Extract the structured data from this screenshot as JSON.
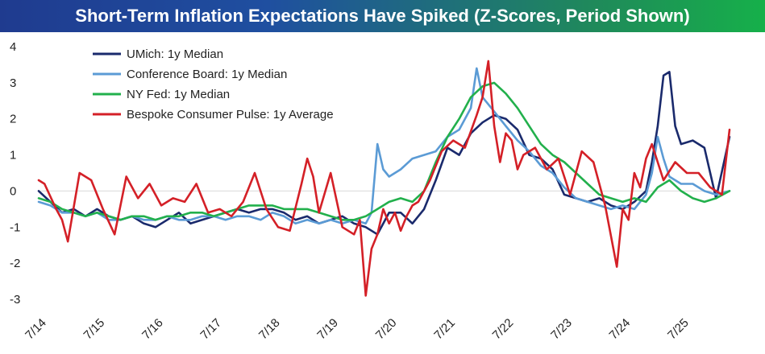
{
  "chart_data": {
    "type": "line",
    "title": "Short-Term Inflation Expectations Have Spiked (Z-Scores, Period Shown)",
    "xlabel": "",
    "ylabel": "",
    "ylim": [
      -3,
      4
    ],
    "yticks": [
      "4",
      "3",
      "2",
      "1",
      "0",
      "-1",
      "-2",
      "-3"
    ],
    "ytick_values": [
      4,
      3,
      2,
      1,
      0,
      -1,
      -2,
      -3
    ],
    "xticks": [
      "7/14",
      "7/15",
      "7/16",
      "7/17",
      "7/18",
      "7/19",
      "7/20",
      "7/21",
      "7/22",
      "7/23",
      "7/24",
      "7/25"
    ],
    "xtick_values": [
      2014.5,
      2015.5,
      2016.5,
      2017.5,
      2018.5,
      2019.5,
      2020.5,
      2021.5,
      2022.5,
      2023.5,
      2024.5,
      2025.5
    ],
    "xlim": [
      2014.5,
      2026.33
    ],
    "legend_position": "top-left",
    "series": [
      {
        "name": "UMich: 1y Median",
        "color": "#1a2a6c",
        "x": [
          2014.5,
          2014.7,
          2014.9,
          2015.1,
          2015.3,
          2015.5,
          2015.7,
          2015.9,
          2016.1,
          2016.3,
          2016.5,
          2016.7,
          2016.9,
          2017.1,
          2017.3,
          2017.5,
          2017.7,
          2017.9,
          2018.1,
          2018.3,
          2018.5,
          2018.7,
          2018.9,
          2019.1,
          2019.3,
          2019.5,
          2019.7,
          2019.9,
          2020.1,
          2020.3,
          2020.5,
          2020.7,
          2020.9,
          2021.1,
          2021.3,
          2021.5,
          2021.7,
          2021.9,
          2022.1,
          2022.3,
          2022.5,
          2022.7,
          2022.9,
          2023.1,
          2023.3,
          2023.5,
          2023.7,
          2023.9,
          2024.1,
          2024.3,
          2024.5,
          2024.7,
          2024.9,
          2025.0,
          2025.1,
          2025.2,
          2025.3,
          2025.4,
          2025.5,
          2025.7,
          2025.9,
          2026.1,
          2026.33
        ],
        "values": [
          0.0,
          -0.3,
          -0.6,
          -0.5,
          -0.7,
          -0.5,
          -0.7,
          -0.8,
          -0.7,
          -0.9,
          -1.0,
          -0.8,
          -0.6,
          -0.9,
          -0.8,
          -0.7,
          -0.6,
          -0.5,
          -0.6,
          -0.5,
          -0.5,
          -0.6,
          -0.8,
          -0.7,
          -0.9,
          -0.8,
          -0.7,
          -0.9,
          -1.0,
          -1.2,
          -0.6,
          -0.6,
          -0.9,
          -0.5,
          0.3,
          1.2,
          1.0,
          1.6,
          1.9,
          2.1,
          2.0,
          1.7,
          1.0,
          0.9,
          0.6,
          -0.1,
          -0.2,
          -0.3,
          -0.2,
          -0.4,
          -0.5,
          -0.3,
          0.0,
          0.8,
          1.8,
          3.2,
          3.3,
          1.8,
          1.3,
          1.4,
          1.2,
          -0.2,
          1.5
        ]
      },
      {
        "name": "Conference Board: 1y Median",
        "color": "#5b9bd5",
        "x": [
          2014.5,
          2014.7,
          2014.9,
          2015.1,
          2015.3,
          2015.5,
          2015.7,
          2015.9,
          2016.1,
          2016.3,
          2016.5,
          2016.7,
          2016.9,
          2017.1,
          2017.3,
          2017.5,
          2017.7,
          2017.9,
          2018.1,
          2018.3,
          2018.5,
          2018.7,
          2018.9,
          2019.1,
          2019.3,
          2019.5,
          2019.7,
          2019.9,
          2020.1,
          2020.2,
          2020.3,
          2020.4,
          2020.5,
          2020.7,
          2020.9,
          2021.1,
          2021.3,
          2021.5,
          2021.7,
          2021.9,
          2022.0,
          2022.1,
          2022.3,
          2022.5,
          2022.7,
          2022.9,
          2023.1,
          2023.3,
          2023.5,
          2023.7,
          2023.9,
          2024.1,
          2024.3,
          2024.5,
          2024.7,
          2024.9,
          2025.0,
          2025.1,
          2025.2,
          2025.3,
          2025.5,
          2025.7,
          2025.9,
          2026.1,
          2026.33
        ],
        "values": [
          -0.3,
          -0.4,
          -0.6,
          -0.6,
          -0.7,
          -0.6,
          -0.8,
          -0.8,
          -0.7,
          -0.8,
          -0.8,
          -0.7,
          -0.8,
          -0.8,
          -0.7,
          -0.7,
          -0.8,
          -0.7,
          -0.7,
          -0.8,
          -0.6,
          -0.7,
          -0.9,
          -0.8,
          -0.9,
          -0.8,
          -0.9,
          -0.8,
          -0.9,
          -0.6,
          1.3,
          0.6,
          0.4,
          0.6,
          0.9,
          1.0,
          1.1,
          1.5,
          1.7,
          2.3,
          3.4,
          2.6,
          2.2,
          1.8,
          1.4,
          1.1,
          0.7,
          0.5,
          0.1,
          -0.2,
          -0.3,
          -0.4,
          -0.5,
          -0.4,
          -0.5,
          -0.1,
          0.5,
          1.5,
          0.9,
          0.4,
          0.2,
          0.2,
          0.0,
          -0.1,
          0.0
        ]
      },
      {
        "name": "NY Fed: 1y Median",
        "color": "#22b04c",
        "x": [
          2014.5,
          2014.7,
          2014.9,
          2015.1,
          2015.3,
          2015.5,
          2015.7,
          2015.9,
          2016.1,
          2016.3,
          2016.5,
          2016.7,
          2016.9,
          2017.1,
          2017.3,
          2017.5,
          2017.7,
          2017.9,
          2018.1,
          2018.3,
          2018.5,
          2018.7,
          2018.9,
          2019.1,
          2019.3,
          2019.5,
          2019.7,
          2019.9,
          2020.1,
          2020.3,
          2020.5,
          2020.7,
          2020.9,
          2021.1,
          2021.3,
          2021.5,
          2021.7,
          2021.9,
          2022.1,
          2022.3,
          2022.5,
          2022.7,
          2022.9,
          2023.1,
          2023.3,
          2023.5,
          2023.7,
          2023.9,
          2024.1,
          2024.3,
          2024.5,
          2024.7,
          2024.9,
          2025.1,
          2025.3,
          2025.5,
          2025.7,
          2025.9,
          2026.1,
          2026.33
        ],
        "values": [
          -0.2,
          -0.3,
          -0.5,
          -0.6,
          -0.7,
          -0.6,
          -0.7,
          -0.8,
          -0.7,
          -0.7,
          -0.8,
          -0.7,
          -0.7,
          -0.6,
          -0.6,
          -0.7,
          -0.6,
          -0.5,
          -0.4,
          -0.4,
          -0.4,
          -0.5,
          -0.5,
          -0.5,
          -0.6,
          -0.7,
          -0.8,
          -0.8,
          -0.7,
          -0.5,
          -0.3,
          -0.2,
          -0.3,
          0.0,
          0.8,
          1.5,
          2.0,
          2.6,
          2.9,
          3.0,
          2.7,
          2.3,
          1.8,
          1.3,
          1.0,
          0.8,
          0.5,
          0.2,
          -0.1,
          -0.2,
          -0.3,
          -0.2,
          -0.3,
          0.1,
          0.3,
          0.0,
          -0.2,
          -0.3,
          -0.2,
          0.0
        ]
      },
      {
        "name": "Bespoke Consumer Pulse: 1y Average",
        "color": "#d42027",
        "x": [
          2014.5,
          2014.6,
          2014.8,
          2014.9,
          2015.0,
          2015.2,
          2015.4,
          2015.6,
          2015.8,
          2016.0,
          2016.2,
          2016.4,
          2016.6,
          2016.8,
          2017.0,
          2017.2,
          2017.4,
          2017.6,
          2017.8,
          2018.0,
          2018.2,
          2018.4,
          2018.6,
          2018.8,
          2019.0,
          2019.1,
          2019.2,
          2019.3,
          2019.5,
          2019.7,
          2019.9,
          2020.0,
          2020.1,
          2020.2,
          2020.3,
          2020.4,
          2020.5,
          2020.6,
          2020.7,
          2020.8,
          2020.9,
          2021.0,
          2021.2,
          2021.4,
          2021.6,
          2021.8,
          2022.0,
          2022.1,
          2022.2,
          2022.3,
          2022.4,
          2022.5,
          2022.6,
          2022.7,
          2022.8,
          2023.0,
          2023.2,
          2023.4,
          2023.6,
          2023.8,
          2024.0,
          2024.2,
          2024.4,
          2024.5,
          2024.6,
          2024.7,
          2024.8,
          2024.9,
          2025.0,
          2025.2,
          2025.4,
          2025.6,
          2025.8,
          2026.0,
          2026.2,
          2026.33
        ],
        "values": [
          0.3,
          0.2,
          -0.5,
          -0.8,
          -1.4,
          0.5,
          0.3,
          -0.5,
          -1.2,
          0.4,
          -0.2,
          0.2,
          -0.4,
          -0.2,
          -0.3,
          0.2,
          -0.6,
          -0.5,
          -0.7,
          -0.3,
          0.5,
          -0.5,
          -1.0,
          -1.1,
          0.2,
          0.9,
          0.4,
          -0.6,
          0.5,
          -1.0,
          -1.2,
          -0.8,
          -2.9,
          -1.6,
          -1.2,
          -0.5,
          -0.9,
          -0.6,
          -1.1,
          -0.7,
          -0.4,
          -0.3,
          0.3,
          1.1,
          1.4,
          1.2,
          2.1,
          2.6,
          3.6,
          1.8,
          0.8,
          1.6,
          1.4,
          0.6,
          1.0,
          1.2,
          0.6,
          0.9,
          -0.1,
          1.1,
          0.8,
          -0.4,
          -2.1,
          -0.5,
          -0.8,
          0.5,
          0.1,
          0.9,
          1.3,
          0.3,
          0.8,
          0.5,
          0.5,
          0.1,
          -0.1,
          1.7
        ]
      }
    ]
  }
}
